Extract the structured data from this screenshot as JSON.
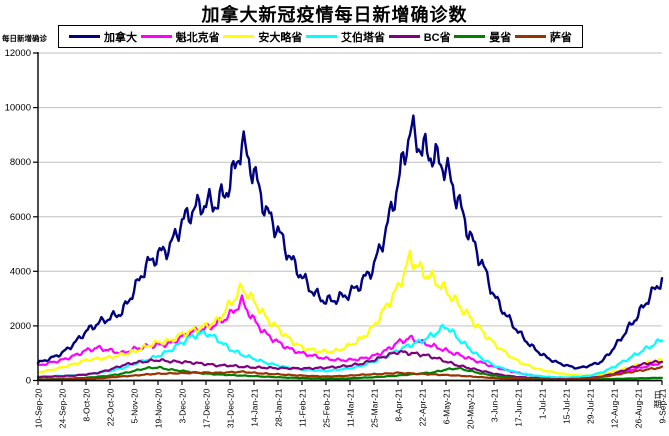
{
  "chart_data": {
    "type": "line",
    "title": "加拿大新冠疫情每日新增确诊数",
    "grid": true,
    "legend_position": "top",
    "y_axis": {
      "label": "每日新增确诊",
      "min": 0,
      "max": 12000,
      "step": 2000,
      "tick_labels": [
        "0",
        "2000",
        "4000",
        "6000",
        "8000",
        "10000",
        "12000"
      ]
    },
    "x_axis": {
      "label": "日期",
      "total_days": 364,
      "tick_every_days": 14,
      "tick_labels": [
        "10-Sep-20",
        "24-Sep-20",
        "8-Oct-20",
        "22-Oct-20",
        "5-Nov-20",
        "19-Nov-20",
        "3-Dec-20",
        "17-Dec-20",
        "31-Dec-20",
        "14-Jan-21",
        "28-Jan-21",
        "11-Feb-21",
        "25-Feb-21",
        "11-Mar-21",
        "25-Mar-21",
        "8-Apr-21",
        "22-Apr-21",
        "6-May-21",
        "20-May-21",
        "3-Jun-21",
        "17-Jun-21",
        "1-Jul-21",
        "15-Jul-21",
        "29-Jul-21",
        "12-Aug-21",
        "26-Aug-21",
        "9-Sep-21"
      ]
    },
    "colors": {
      "grid": "#c0c0c0",
      "axis": "#000000"
    },
    "render_hints": {
      "sample_interval_days": 7,
      "weekly_noise_rel": 0.05,
      "secondary_noise_rel": 0.03
    },
    "series": [
      {
        "name": "加拿大",
        "color": "#000080",
        "line_width": 2.4,
        "interval_days": 7,
        "values": [
          650,
          800,
          1000,
          1350,
          1800,
          2100,
          2300,
          2500,
          3300,
          4200,
          4600,
          4900,
          5800,
          6300,
          6500,
          6500,
          7200,
          8700,
          7600,
          6200,
          5500,
          4500,
          3800,
          3200,
          2900,
          3000,
          3200,
          3600,
          4200,
          5500,
          7200,
          9200,
          8500,
          8200,
          7800,
          6600,
          5300,
          4300,
          3100,
          2400,
          1800,
          1300,
          950,
          700,
          550,
          450,
          550,
          700,
          1200,
          1800,
          2400,
          3100,
          3700
        ]
      },
      {
        "name": "魁北克省",
        "color": "#ff00ff",
        "line_width": 2.2,
        "interval_days": 7,
        "values": [
          550,
          650,
          750,
          900,
          1100,
          1200,
          1100,
          1000,
          1150,
          1250,
          1300,
          1350,
          1600,
          1800,
          1900,
          2100,
          2400,
          2900,
          2200,
          1700,
          1400,
          1150,
          1000,
          900,
          800,
          750,
          750,
          800,
          900,
          1100,
          1400,
          1550,
          1400,
          1250,
          1100,
          950,
          800,
          650,
          500,
          380,
          280,
          200,
          140,
          110,
          90,
          80,
          100,
          130,
          200,
          350,
          450,
          550,
          650
        ]
      },
      {
        "name": "安大略省",
        "color": "#ffff00",
        "line_width": 2.2,
        "interval_days": 7,
        "values": [
          300,
          380,
          480,
          600,
          750,
          800,
          850,
          950,
          1050,
          1250,
          1400,
          1450,
          1700,
          1850,
          2000,
          2200,
          2800,
          3400,
          2900,
          2300,
          1900,
          1500,
          1200,
          1100,
          1050,
          1100,
          1300,
          1550,
          2000,
          2700,
          3400,
          4500,
          4000,
          3700,
          3300,
          2800,
          2300,
          1800,
          1350,
          1000,
          700,
          520,
          380,
          300,
          230,
          180,
          180,
          220,
          320,
          450,
          580,
          680,
          750
        ]
      },
      {
        "name": "艾伯塔省",
        "color": "#00ffff",
        "line_width": 2.2,
        "interval_days": 7,
        "values": [
          150,
          160,
          170,
          190,
          220,
          280,
          350,
          450,
          600,
          750,
          900,
          1100,
          1400,
          1650,
          1750,
          1500,
          1150,
          950,
          800,
          650,
          550,
          450,
          400,
          380,
          350,
          400,
          450,
          550,
          700,
          900,
          1100,
          1300,
          1450,
          1700,
          2000,
          1550,
          1150,
          800,
          550,
          400,
          280,
          200,
          150,
          120,
          110,
          130,
          180,
          300,
          500,
          750,
          1000,
          1250,
          1500
        ]
      },
      {
        "name": "BC省",
        "color": "#800080",
        "line_width": 2.2,
        "interval_days": 7,
        "values": [
          120,
          140,
          160,
          180,
          220,
          280,
          400,
          550,
          650,
          700,
          750,
          700,
          680,
          650,
          600,
          550,
          550,
          500,
          480,
          470,
          450,
          450,
          440,
          450,
          470,
          500,
          550,
          620,
          750,
          900,
          1050,
          1000,
          950,
          850,
          700,
          550,
          450,
          350,
          250,
          180,
          130,
          100,
          70,
          50,
          50,
          60,
          90,
          150,
          250,
          400,
          550,
          650,
          700
        ]
      },
      {
        "name": "曼省",
        "color": "#008000",
        "line_width": 2.2,
        "interval_days": 7,
        "values": [
          40,
          50,
          60,
          80,
          100,
          140,
          180,
          250,
          350,
          450,
          480,
          400,
          350,
          300,
          250,
          220,
          200,
          180,
          160,
          140,
          120,
          100,
          90,
          80,
          70,
          70,
          80,
          100,
          120,
          150,
          180,
          220,
          260,
          300,
          400,
          450,
          350,
          250,
          180,
          120,
          90,
          60,
          45,
          35,
          30,
          30,
          35,
          45,
          60,
          70,
          80,
          90,
          100
        ]
      },
      {
        "name": "萨省",
        "color": "#993300",
        "line_width": 2.2,
        "interval_days": 7,
        "values": [
          30,
          35,
          40,
          50,
          60,
          80,
          110,
          150,
          180,
          220,
          250,
          260,
          270,
          280,
          290,
          280,
          300,
          320,
          280,
          250,
          230,
          200,
          180,
          160,
          150,
          160,
          180,
          210,
          230,
          250,
          280,
          260,
          240,
          220,
          200,
          180,
          150,
          120,
          90,
          70,
          55,
          45,
          35,
          30,
          35,
          50,
          80,
          130,
          200,
          280,
          350,
          420,
          480
        ]
      }
    ]
  }
}
